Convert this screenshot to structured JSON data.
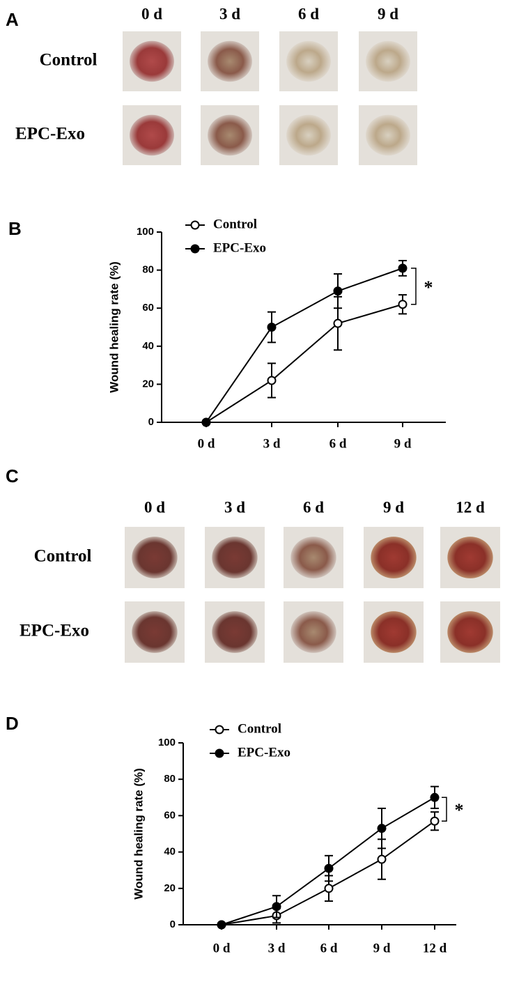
{
  "panels": [
    {
      "label": "A",
      "columns": [
        "0 d",
        "3 d",
        "6 d",
        "9 d"
      ],
      "rows": [
        "Control",
        "EPC-Exo"
      ]
    },
    {
      "label": "C",
      "columns": [
        "0 d",
        "3 d",
        "6 d",
        "9 d",
        "12 d"
      ],
      "rows": [
        "Control",
        "EPC-Exo"
      ]
    }
  ],
  "chart_data": [
    {
      "type": "line",
      "panel_label": "B",
      "y_label": "Wound healing rate (%)",
      "categories": [
        "0 d",
        "3 d",
        "6 d",
        "9 d"
      ],
      "series": [
        {
          "name": "Control",
          "color": "#000000",
          "marker_fill": "#ffffff",
          "values": [
            0,
            22,
            52,
            62
          ],
          "errors": [
            0,
            9,
            14,
            5
          ]
        },
        {
          "name": "EPC-Exo",
          "color": "#000000",
          "marker_fill": "#000000",
          "values": [
            0,
            50,
            69,
            81
          ],
          "errors": [
            0,
            8,
            9,
            4
          ]
        }
      ],
      "ylim": [
        0,
        100
      ],
      "yticks": [
        0,
        20,
        40,
        60,
        80,
        100
      ],
      "annotation": "*"
    },
    {
      "type": "line",
      "panel_label": "D",
      "y_label": "Wound healing rate (%)",
      "categories": [
        "0 d",
        "3 d",
        "6 d",
        "9 d",
        "12 d"
      ],
      "series": [
        {
          "name": "Control",
          "color": "#000000",
          "marker_fill": "#ffffff",
          "values": [
            0,
            5,
            20,
            36,
            57
          ],
          "errors": [
            0,
            4,
            7,
            11,
            5
          ]
        },
        {
          "name": "EPC-Exo",
          "color": "#000000",
          "marker_fill": "#000000",
          "values": [
            0,
            10,
            31,
            53,
            70
          ],
          "errors": [
            0,
            6,
            7,
            11,
            6
          ]
        }
      ],
      "ylim": [
        0,
        100
      ],
      "yticks": [
        0,
        20,
        40,
        60,
        80,
        100
      ],
      "annotation": "*"
    }
  ]
}
